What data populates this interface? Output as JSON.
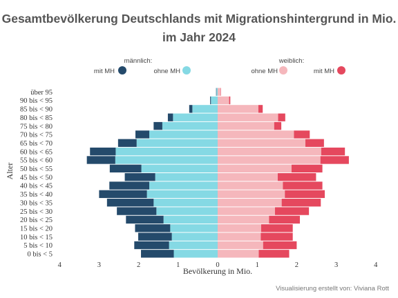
{
  "chart_data": {
    "type": "bar",
    "orientation": "horizontal-population-pyramid",
    "title": "Gesamtbevölkerung Deutschlands mit Migrationshintergrund in Mio.",
    "subtitle": "im Jahr 2024",
    "xlabel": "Bevölkerung in Mio.",
    "ylabel": "Alter",
    "xlim": [
      -4,
      4
    ],
    "x_ticks": [
      "4",
      "3",
      "2",
      "1",
      "0",
      "1",
      "2",
      "3",
      "4"
    ],
    "legend": {
      "male_title": "männlich:",
      "female_title": "weiblich:",
      "position": "top"
    },
    "categories": [
      "0 bis < 5",
      "5 bis < 10",
      "10 bis < 15",
      "15 bis < 20",
      "20 bis < 25",
      "25 bis < 30",
      "30 bis < 35",
      "35 bis < 40",
      "40 bis < 45",
      "45 bis < 50",
      "50 bis < 55",
      "55 bis < 60",
      "60 bis < 65",
      "65 bis < 70",
      "70 bis < 75",
      "75 bis < 80",
      "80 bis < 85",
      "85 bis < 90",
      "90 bis < 95",
      "über 95"
    ],
    "series": [
      {
        "name": "mit MH",
        "group": "male",
        "color": "#244a6b",
        "values": [
          0.83,
          0.88,
          0.85,
          0.89,
          0.95,
          1.0,
          1.18,
          1.21,
          1.01,
          0.77,
          0.8,
          0.72,
          0.65,
          0.47,
          0.35,
          0.22,
          0.13,
          0.08,
          0.02,
          0.01
        ]
      },
      {
        "name": "ohne MH",
        "group": "male",
        "color": "#85d9e4",
        "values": [
          1.11,
          1.23,
          1.16,
          1.2,
          1.37,
          1.55,
          1.62,
          1.79,
          1.73,
          1.58,
          1.93,
          2.59,
          2.58,
          2.05,
          1.73,
          1.4,
          1.13,
          0.64,
          0.17,
          0.03
        ]
      },
      {
        "name": "ohne MH",
        "group": "female",
        "color": "#f5b7bc",
        "values": [
          1.04,
          1.15,
          1.09,
          1.1,
          1.3,
          1.45,
          1.62,
          1.7,
          1.65,
          1.52,
          1.87,
          2.6,
          2.62,
          2.22,
          1.93,
          1.43,
          1.53,
          1.03,
          0.29,
          0.07
        ]
      },
      {
        "name": "mit MH",
        "group": "female",
        "color": "#e5485e",
        "values": [
          0.77,
          0.85,
          0.81,
          0.8,
          0.78,
          0.86,
          0.99,
          1.01,
          1.0,
          0.97,
          0.78,
          0.72,
          0.6,
          0.47,
          0.4,
          0.18,
          0.18,
          0.11,
          0.03,
          0.01
        ]
      }
    ]
  },
  "caption": "Visualisierung erstellt von: Viviana Rott"
}
